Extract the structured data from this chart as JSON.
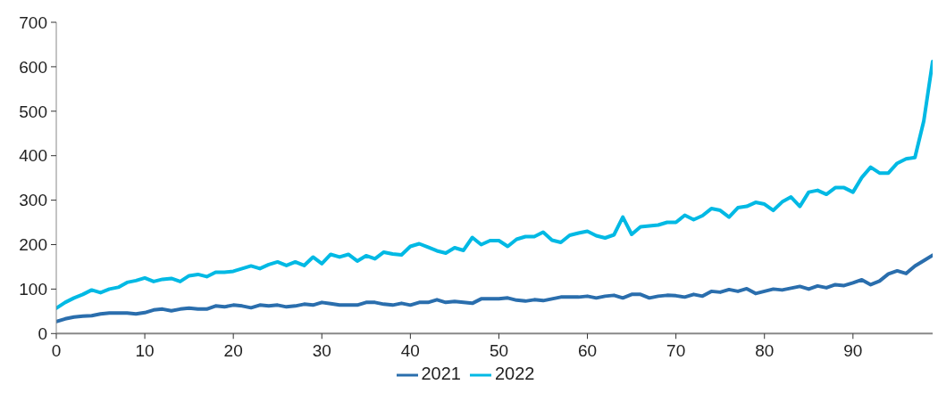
{
  "chart_data": {
    "type": "line",
    "x": [
      0,
      1,
      2,
      3,
      4,
      5,
      6,
      7,
      8,
      9,
      10,
      11,
      12,
      13,
      14,
      15,
      16,
      17,
      18,
      19,
      20,
      21,
      22,
      23,
      24,
      25,
      26,
      27,
      28,
      29,
      30,
      31,
      32,
      33,
      34,
      35,
      36,
      37,
      38,
      39,
      40,
      41,
      42,
      43,
      44,
      45,
      46,
      47,
      48,
      49,
      50,
      51,
      52,
      53,
      54,
      55,
      56,
      57,
      58,
      59,
      60,
      61,
      62,
      63,
      64,
      65,
      66,
      67,
      68,
      69,
      70,
      71,
      72,
      73,
      74,
      75,
      76,
      77,
      78,
      79,
      80,
      81,
      82,
      83,
      84,
      85,
      86,
      87,
      88,
      89,
      90,
      91,
      92,
      93,
      94,
      95,
      96,
      97,
      98,
      99
    ],
    "xlim": [
      0,
      99
    ],
    "xticks": [
      0,
      10,
      20,
      30,
      40,
      50,
      60,
      70,
      80,
      90
    ],
    "ylim": [
      0,
      700
    ],
    "yticks": [
      0,
      100,
      200,
      300,
      400,
      500,
      600,
      700
    ],
    "grid": false,
    "legend": "bottom",
    "marker": "none",
    "line_style": "solid",
    "series": [
      {
        "name": "2021",
        "color": "#2a6ead",
        "values": [
          27,
          33,
          37,
          39,
          40,
          44,
          46,
          46,
          46,
          44,
          47,
          53,
          55,
          51,
          55,
          57,
          55,
          55,
          62,
          60,
          64,
          62,
          58,
          64,
          62,
          64,
          60,
          62,
          66,
          64,
          70,
          67,
          64,
          64,
          64,
          70,
          70,
          66,
          64,
          68,
          64,
          70,
          70,
          76,
          70,
          72,
          70,
          68,
          78,
          78,
          78,
          80,
          75,
          73,
          76,
          74,
          78,
          82,
          82,
          82,
          84,
          80,
          84,
          86,
          80,
          88,
          88,
          80,
          84,
          86,
          85,
          82,
          88,
          84,
          95,
          93,
          99,
          95,
          101,
          90,
          95,
          100,
          98,
          102,
          106,
          100,
          107,
          103,
          110,
          108,
          114,
          121,
          110,
          118,
          134,
          141,
          135,
          152,
          164,
          176
        ]
      },
      {
        "name": "2022",
        "color": "#00b9e4",
        "values": [
          57,
          70,
          80,
          88,
          98,
          92,
          100,
          104,
          115,
          119,
          125,
          117,
          122,
          124,
          117,
          130,
          133,
          128,
          138,
          138,
          140,
          146,
          152,
          146,
          155,
          161,
          153,
          161,
          153,
          172,
          157,
          178,
          172,
          178,
          163,
          175,
          168,
          183,
          179,
          177,
          196,
          202,
          194,
          186,
          181,
          193,
          187,
          216,
          200,
          209,
          209,
          196,
          212,
          218,
          218,
          228,
          210,
          205,
          221,
          226,
          230,
          220,
          215,
          222,
          262,
          223,
          240,
          242,
          244,
          250,
          250,
          266,
          256,
          265,
          281,
          277,
          262,
          283,
          286,
          295,
          291,
          277,
          296,
          307,
          286,
          318,
          322,
          313,
          328,
          328,
          318,
          351,
          374,
          361,
          361,
          383,
          393,
          396,
          478,
          612
        ]
      }
    ]
  }
}
